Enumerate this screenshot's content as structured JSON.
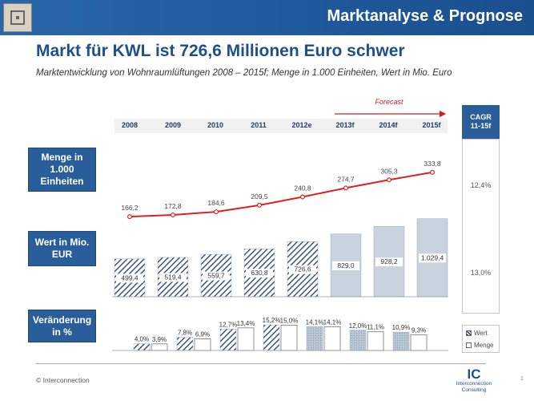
{
  "header": {
    "title": "Marktanalyse & Prognose"
  },
  "title": "Markt für KWL ist 726,6 Millionen Euro schwer",
  "subtitle": "Marktentwicklung von Wohnraumlüftungen 2008 – 2015f; Menge in 1.000 Einheiten, Wert in Mio. Euro",
  "forecast_label": "Forecast",
  "row_labels": {
    "menge": "Menge in 1.000 Einheiten",
    "wert": "Wert in Mio. EUR",
    "veraenderung": "Veränderung in %"
  },
  "cagr": {
    "title": "CAGR",
    "range": "11-15f",
    "menge": "12,4%",
    "wert": "13,0%"
  },
  "legend": {
    "wert": "Wert",
    "menge": "Menge"
  },
  "footer": {
    "copyright": "© Interconnection",
    "logo_letters": "IC",
    "logo_name_1": "Interconnection",
    "logo_name_2": "Consulting",
    "page": "1"
  },
  "colors": {
    "brand": "#1f5a9c",
    "line": "#e02020",
    "forecast": "#cc2020",
    "forecast_bar": "#c9d3de",
    "hatch": "#1f3d66"
  },
  "chart_data": {
    "type": "bar",
    "categories": [
      "2008",
      "2009",
      "2010",
      "2011",
      "2012e",
      "2013f",
      "2014f",
      "2015f"
    ],
    "forecast_from_index": 5,
    "wert": {
      "values": [
        499.4,
        519.4,
        559.7,
        630.8,
        726.6,
        829.0,
        928.2,
        1029.4
      ],
      "labels": [
        "499,4",
        "519,4",
        "559,7",
        "630,8",
        "726,6",
        "829,0",
        "928,2",
        "1.029,4"
      ]
    },
    "menge": {
      "values": [
        166.2,
        172.8,
        184.6,
        209.5,
        240.8,
        274.7,
        305.3,
        333.8
      ],
      "labels": [
        "166,2",
        "172,8",
        "184,6",
        "209,5",
        "240,8",
        "274,7",
        "305,3",
        "333,8"
      ]
    },
    "change_wert": {
      "values": [
        4.0,
        7.8,
        12.7,
        15.2,
        14.1,
        12.0,
        10.9
      ],
      "labels": [
        "4,0%",
        "7,8%",
        "12,7%",
        "15,2%",
        "14,1%",
        "12,0%",
        "10,9%"
      ]
    },
    "change_menge": {
      "values": [
        3.9,
        6.9,
        13.4,
        15.0,
        14.1,
        11.1,
        9.3
      ],
      "labels": [
        "3,9%",
        "6,9%",
        "13,4%",
        "15,0%",
        "14,1%",
        "11,1%",
        "9,3%"
      ]
    }
  }
}
